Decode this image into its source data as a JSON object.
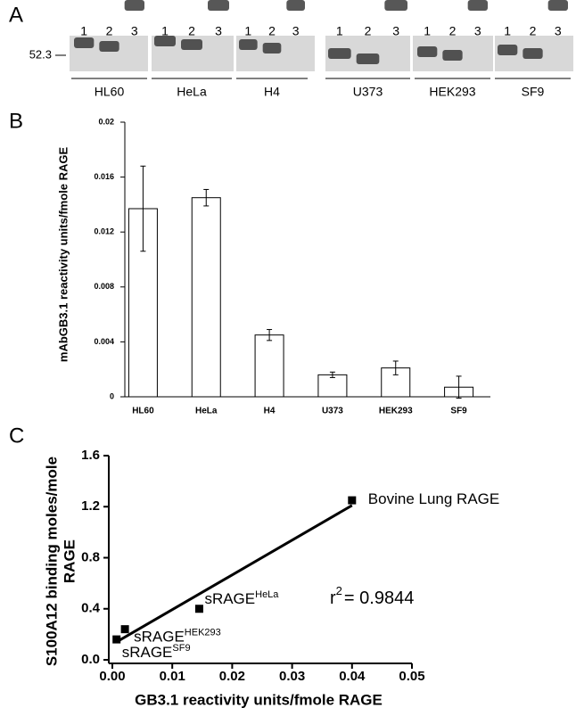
{
  "blot": {
    "panel_label": "A",
    "marker": "52.3",
    "lanes": [
      "1",
      "2",
      "3"
    ],
    "groups": [
      "HL60",
      "HeLa",
      "H4",
      "U373",
      "HEK293",
      "SF9"
    ]
  },
  "chart_data": [
    {
      "type": "bar",
      "panel_label": "B",
      "y_label": "mAbGB3.1 reactivity units/fmole RAGE",
      "categories": [
        "HL60",
        "HeLa",
        "H4",
        "U373",
        "HEK293",
        "SF9"
      ],
      "values": [
        0.0137,
        0.0145,
        0.0045,
        0.0016,
        0.0021,
        0.0007
      ],
      "errors": [
        0.0031,
        0.0006,
        0.0004,
        0.0002,
        0.0005,
        0.0008
      ],
      "color": "#ffffff",
      "ylim": [
        0,
        0.02
      ],
      "yticks": [
        0,
        0.004,
        0.008,
        0.012,
        0.016,
        0.02
      ]
    },
    {
      "type": "scatter",
      "panel_label": "C",
      "x_label": "GB3.1 reactivity units/fmole RAGE",
      "y_label": "S100A12 binding moles/mole RAGE",
      "x": [
        0.0007,
        0.0021,
        0.0145,
        0.04
      ],
      "y": [
        0.16,
        0.24,
        0.4,
        1.25
      ],
      "point_labels": [
        {
          "text": "sRAGE",
          "sup": "SF9"
        },
        {
          "text": "sRAGE",
          "sup": "HEK293"
        },
        {
          "text": "sRAGE",
          "sup": "HeLa"
        },
        {
          "text": "Bovine Lung RAGE"
        }
      ],
      "fit_line": {
        "x": [
          0.0007,
          0.04
        ],
        "y": [
          0.14,
          1.21
        ]
      },
      "annotation": {
        "text": "r",
        "sup": "2",
        "rest": "= 0.9844"
      },
      "color": "#000000",
      "xlim": [
        0,
        0.05
      ],
      "xticks": [
        {
          "value": 0,
          "label": "0.00"
        },
        0.01,
        0.02,
        0.03,
        0.04,
        0.05
      ],
      "ylim": [
        0,
        1.6
      ],
      "yticks": [
        {
          "value": 0,
          "label": "0.0"
        },
        0.4,
        0.8,
        1.2,
        1.6
      ]
    }
  ]
}
